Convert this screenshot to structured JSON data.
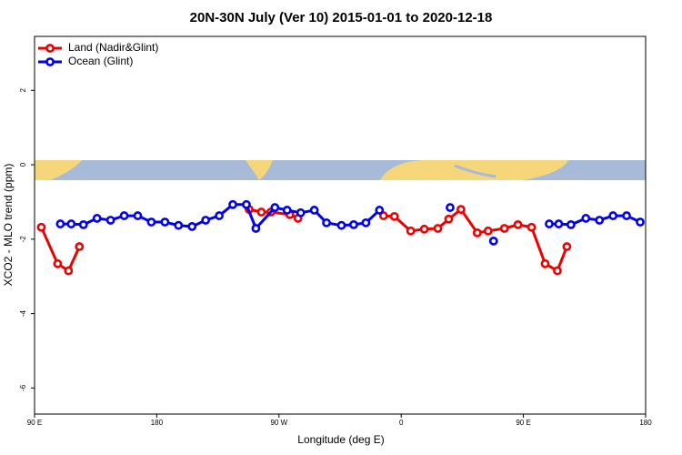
{
  "chart_data": {
    "type": "line",
    "title": "20N-30N July (Ver 10)   2015-01-01 to 2020-12-18",
    "xlabel": "Longitude (deg E)",
    "ylabel": "XCO2 - MLO trend (ppm)",
    "xlim": [
      90,
      540
    ],
    "xticks": [
      {
        "value": 90,
        "label": "90 E"
      },
      180,
      {
        "value": 270,
        "label": "90 W"
      },
      {
        "value": 360,
        "label": "0"
      },
      {
        "value": 450,
        "label": "90 E"
      },
      {
        "value": 540,
        "label": "180"
      }
    ],
    "ylim": [
      -6.7,
      3.45
    ],
    "yticks": [
      -6,
      -4,
      -2,
      0,
      2
    ],
    "legend": "top-left",
    "series": [
      {
        "name": "Land (Nadir&Glint)",
        "color": "#ee0000",
        "x": [
          95,
          107,
          115,
          123,
          null,
          248,
          257,
          264,
          278,
          284,
          null,
          347,
          355,
          367,
          377,
          387,
          395,
          404,
          416,
          424,
          436,
          446,
          456,
          466,
          475,
          482
        ],
        "values": [
          -1.68,
          -2.66,
          -2.85,
          -2.2,
          null,
          -1.2,
          -1.27,
          -1.27,
          -1.34,
          -1.44,
          null,
          -1.37,
          -1.39,
          -1.78,
          -1.73,
          -1.71,
          -1.46,
          -1.2,
          -1.83,
          -1.78,
          -1.71,
          -1.61,
          -1.68,
          -2.66,
          -2.85,
          -2.2
        ]
      },
      {
        "name": "Ocean (Glint)",
        "color": "#0000ee",
        "x": [
          109,
          117,
          126,
          136,
          146,
          156,
          166,
          176,
          186,
          196,
          206,
          216,
          226,
          236,
          246,
          253,
          267,
          276,
          286,
          296,
          305,
          316,
          325,
          334,
          344,
          null,
          396,
          null,
          428,
          null,
          469,
          476,
          485,
          496,
          506,
          516,
          526,
          536
        ],
        "values": [
          -1.59,
          -1.59,
          -1.61,
          -1.44,
          -1.49,
          -1.37,
          -1.37,
          -1.54,
          -1.54,
          -1.63,
          -1.66,
          -1.49,
          -1.37,
          -1.07,
          -1.07,
          -1.71,
          -1.15,
          -1.22,
          -1.29,
          -1.22,
          -1.56,
          -1.63,
          -1.61,
          -1.56,
          -1.22,
          null,
          -1.15,
          null,
          -2.05,
          null,
          -1.59,
          -1.59,
          -1.61,
          -1.44,
          -1.49,
          -1.37,
          -1.37,
          -1.54
        ]
      }
    ]
  }
}
